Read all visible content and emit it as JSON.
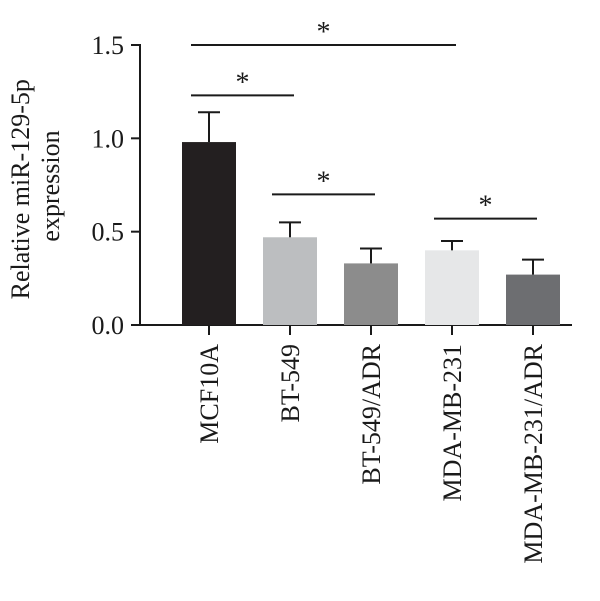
{
  "chart_data": {
    "type": "bar",
    "ylabel_lines": [
      "Relative miR-129-5p",
      "expression"
    ],
    "categories": [
      "MCF10A",
      "BT-549",
      "BT-549/ADR",
      "MDA-MB-231",
      "MDA-MB-231/ADR"
    ],
    "values": [
      0.98,
      0.47,
      0.33,
      0.4,
      0.27
    ],
    "errors": [
      0.16,
      0.08,
      0.08,
      0.05,
      0.08
    ],
    "colors": [
      "#231f20",
      "#bcbec0",
      "#8c8c8c",
      "#e6e7e8",
      "#6d6e71"
    ],
    "ylim": [
      0,
      1.5
    ],
    "yticks": [
      0.0,
      0.5,
      1.0,
      1.5
    ],
    "ytick_labels": [
      "0.0",
      "0.5",
      "1.0",
      "1.5"
    ],
    "significance": [
      {
        "from": 0,
        "to": 3,
        "y": 1.5,
        "label": "*"
      },
      {
        "from": 0,
        "to": 1,
        "y": 1.23,
        "label": "*"
      },
      {
        "from": 1,
        "to": 2,
        "y": 0.7,
        "label": "*"
      },
      {
        "from": 3,
        "to": 4,
        "y": 0.57,
        "label": "*"
      }
    ]
  }
}
